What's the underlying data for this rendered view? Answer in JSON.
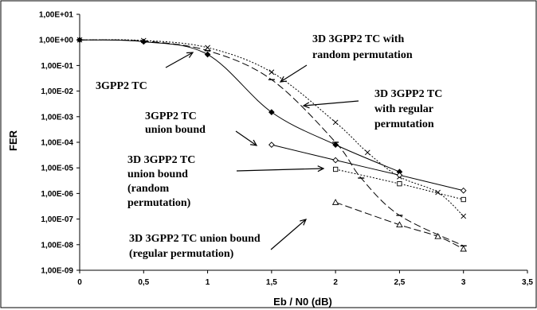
{
  "chart_data": {
    "type": "line",
    "title": "",
    "xlabel": "Eb / N0 (dB)",
    "ylabel": "FER",
    "xlim": [
      0,
      3.5
    ],
    "ylim": [
      1e-09,
      10
    ],
    "y_scale": "log",
    "grid": false,
    "legend": "none",
    "x_ticks": [
      "0",
      "0,5",
      "1",
      "1,5",
      "2",
      "2,5",
      "3",
      "3,5"
    ],
    "y_ticks": [
      "1,00E-09",
      "1,00E-08",
      "1,00E-07",
      "1,00E-06",
      "1,00E-05",
      "1,00E-04",
      "1,00E-03",
      "1,00E-02",
      "1,00E-01",
      "1,00E+00",
      "1,00E+01"
    ],
    "series": [
      {
        "style": "solid",
        "marker": "diamond-filled",
        "x": [
          0,
          0.5,
          1,
          1.5,
          2,
          2.5
        ],
        "y": [
          1.0,
          0.85,
          0.27,
          0.0015,
          8e-05,
          7e-06
        ]
      },
      {
        "style": "dashed",
        "marker": "dash",
        "x": [
          0,
          0.5,
          1,
          1.5,
          2,
          2.2,
          2.5,
          3
        ],
        "y": [
          1.0,
          0.9,
          0.38,
          0.028,
          0.0001,
          4e-06,
          1.4e-07,
          9e-09
        ]
      },
      {
        "style": "dotted",
        "marker": "x",
        "x": [
          0,
          0.5,
          1,
          1.5,
          2,
          2.25,
          2.5,
          2.8,
          3
        ],
        "y": [
          1.0,
          0.95,
          0.5,
          0.055,
          0.0006,
          4e-05,
          4.5e-06,
          1.1e-06,
          1.3e-07
        ]
      },
      {
        "style": "solid",
        "marker": "diamond-open",
        "x": [
          1.5,
          2,
          2.5,
          3
        ],
        "y": [
          8e-05,
          2e-05,
          5.2e-06,
          1.3e-06
        ]
      },
      {
        "style": "dotted",
        "marker": "square-open",
        "x": [
          2,
          2.5,
          3
        ],
        "y": [
          8.8e-06,
          2.4e-06,
          5.8e-07
        ]
      },
      {
        "style": "dashed",
        "marker": "triangle-open",
        "x": [
          2,
          2.5,
          2.8,
          3
        ],
        "y": [
          4.5e-07,
          6e-08,
          2.1e-08,
          6.8e-09
        ]
      }
    ],
    "annotations": [
      {
        "lines": [
          "3D 3GPP2 TC with",
          "random permutation"
        ]
      },
      {
        "lines": [
          "3GPP2 TC"
        ]
      },
      {
        "lines": [
          "3D 3GPP2 TC",
          "with regular",
          "permutation"
        ]
      },
      {
        "lines": [
          "3GPP2 TC",
          "union bound"
        ]
      },
      {
        "lines": [
          "3D 3GPP2 TC",
          "union bound",
          "(random",
          "permutation)"
        ]
      },
      {
        "lines": [
          "3D 3GPP2 TC union bound",
          "(regular permutation)"
        ]
      }
    ]
  }
}
